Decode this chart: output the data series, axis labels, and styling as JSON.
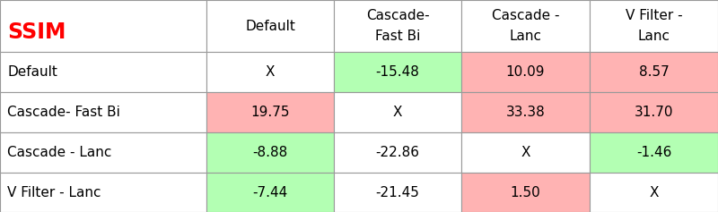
{
  "title": "SSIM",
  "col_headers": [
    "",
    "Default",
    "Cascade-\nFast Bi",
    "Cascade -\nLanc",
    "V Filter -\nLanc"
  ],
  "row_headers": [
    "Default",
    "Cascade- Fast Bi",
    "Cascade - Lanc",
    "V Filter - Lanc"
  ],
  "cell_values": [
    [
      "X",
      "-15.48",
      "10.09",
      "8.57"
    ],
    [
      "19.75",
      "X",
      "33.38",
      "31.70"
    ],
    [
      "-8.88",
      "-22.86",
      "X",
      "-1.46"
    ],
    [
      "-7.44",
      "-21.45",
      "1.50",
      "X"
    ]
  ],
  "cell_colors": [
    [
      "#ffffff",
      "#b3ffb3",
      "#ffb3b3",
      "#ffb3b3"
    ],
    [
      "#ffb3b3",
      "#ffffff",
      "#ffb3b3",
      "#ffb3b3"
    ],
    [
      "#b3ffb3",
      "#ffffff",
      "#ffffff",
      "#b3ffb3"
    ],
    [
      "#b3ffb3",
      "#ffffff",
      "#ffb3b3",
      "#ffffff"
    ]
  ],
  "header_bg": "#ffffff",
  "border_color": "#999999",
  "text_color": "#000000",
  "title_color": "#ff0000",
  "figsize": [
    8.0,
    2.37
  ],
  "dpi": 100
}
